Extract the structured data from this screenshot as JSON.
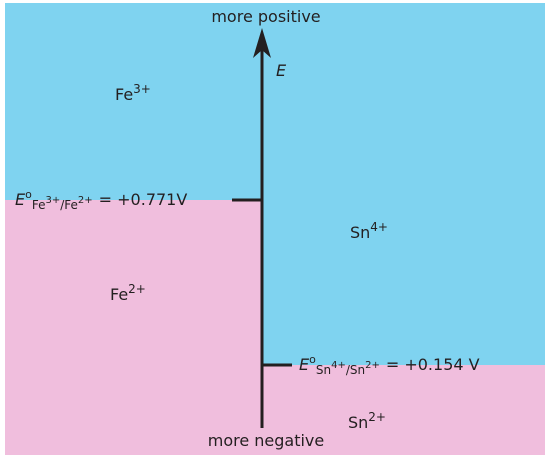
{
  "top_label": "more positive",
  "bottom_label": "more negative",
  "axis_label": "E",
  "species": [
    {
      "base": "Fe",
      "charge": "3+"
    },
    {
      "base": "Sn",
      "charge": "4+"
    },
    {
      "base": "Fe",
      "charge": "2+"
    },
    {
      "base": "Sn",
      "charge": "2+"
    }
  ],
  "potentials": [
    {
      "symbol": "E",
      "degree": "o",
      "sub_1": "Fe",
      "sup_1": "3+",
      "sub_2": "/Fe",
      "sup_2": "2+",
      "value": "= +0.771V"
    },
    {
      "symbol": "E",
      "degree": "o",
      "sub_1": "Sn",
      "sup_1": "4+",
      "sub_2": "/Sn",
      "sup_2": "2+",
      "value": "= +0.154 V"
    }
  ]
}
